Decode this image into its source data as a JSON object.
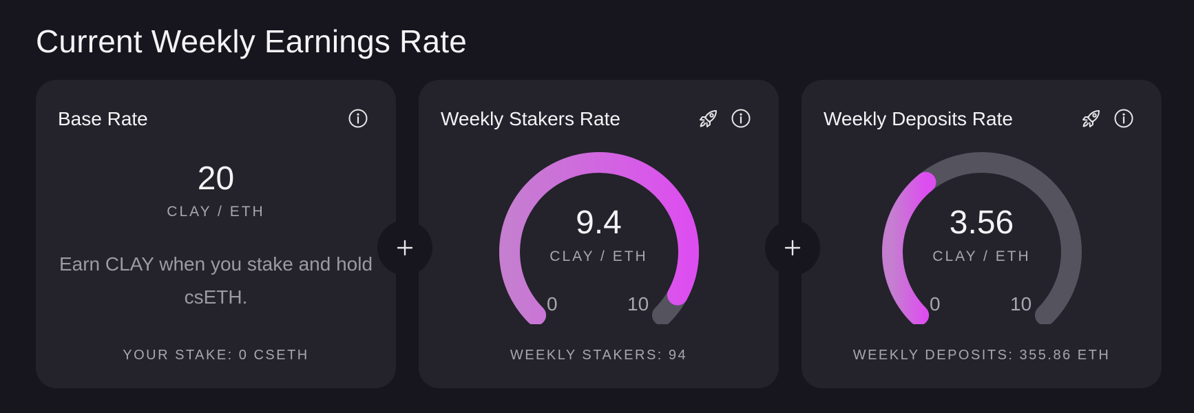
{
  "page": {
    "title": "Current Weekly Earnings Rate"
  },
  "cards": [
    {
      "title": "Base Rate",
      "value": "20",
      "unit": "CLAY / ETH",
      "description": "Earn CLAY when you stake and hold csETH.",
      "footer": "YOUR STAKE: 0 CSETH",
      "icons": [
        "info-icon"
      ]
    },
    {
      "title": "Weekly Stakers Rate",
      "value": "9.4",
      "unit": "CLAY / ETH",
      "gauge_min": "0",
      "gauge_max": "10",
      "gauge_fraction": 0.94,
      "footer": "WEEKLY STAKERS: 94",
      "icons": [
        "rocket-icon",
        "info-icon"
      ]
    },
    {
      "title": "Weekly Deposits Rate",
      "value": "3.56",
      "unit": "CLAY / ETH",
      "gauge_min": "0",
      "gauge_max": "10",
      "gauge_fraction": 0.356,
      "footer": "WEEKLY DEPOSITS: 355.86 ETH",
      "icons": [
        "rocket-icon",
        "info-icon"
      ]
    }
  ],
  "plus_symbol": "+",
  "colors": {
    "background": "#17151d",
    "card": "#24222b",
    "gauge_track": "#55535d",
    "gauge_start": "#c57ed0",
    "gauge_end": "#dd4ef0",
    "text_primary": "#f4f3f6",
    "text_secondary": "#a8a6ae"
  }
}
